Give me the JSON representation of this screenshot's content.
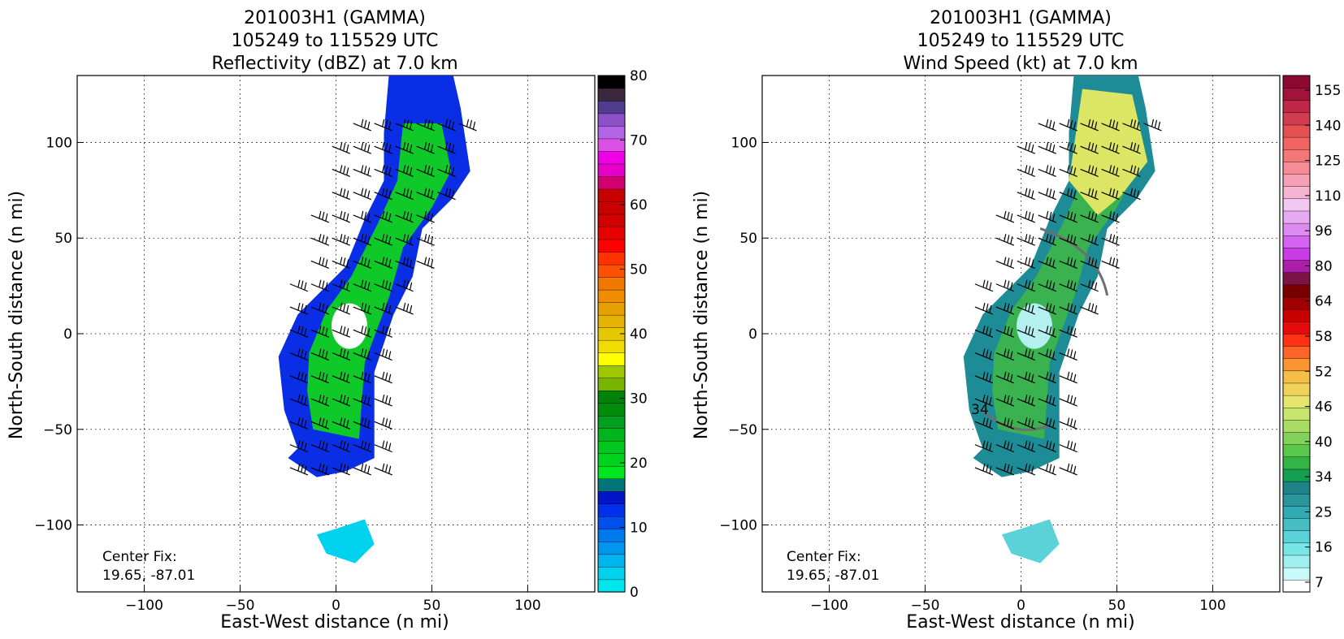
{
  "chart_data": [
    {
      "type": "heatmap",
      "title_lines": [
        "201003H1 (GAMMA)",
        "105249 to 115529 UTC",
        "Reflectivity (dBZ) at 7.0 km"
      ],
      "xlabel": "East-West distance (n mi)",
      "ylabel": "North-South distance (n mi)",
      "xlim": [
        -135,
        135
      ],
      "ylim": [
        -135,
        135
      ],
      "xticks": [
        -100,
        -50,
        0,
        50,
        100
      ],
      "yticks": [
        -100,
        -50,
        0,
        50,
        100
      ],
      "grid": true,
      "annotation_lines": [
        "Center Fix:",
        "19.65, -87.01"
      ],
      "colorbar": {
        "min": 0,
        "max": 80,
        "tick_labels": [
          "0",
          "10",
          "20",
          "30",
          "40",
          "50",
          "60",
          "70",
          "80"
        ],
        "colors": [
          "#00e6ee",
          "#00d2ee",
          "#00b4ee",
          "#0096ee",
          "#0078ee",
          "#0050ee",
          "#0030ee",
          "#0014c8",
          "#00767a",
          "#00e61e",
          "#00d21e",
          "#00c81e",
          "#00b41e",
          "#00a01e",
          "#008c0a",
          "#00820a",
          "#78b400",
          "#a0c800",
          "#ffff00",
          "#f0dc00",
          "#e6c800",
          "#e6b400",
          "#e6a000",
          "#f08c00",
          "#f07800",
          "#ff5000",
          "#ff3200",
          "#ff0000",
          "#e60000",
          "#d20000",
          "#c80000",
          "#c80000",
          "#d2006e",
          "#e600c8",
          "#f000e6",
          "#dc50e6",
          "#b464e6",
          "#8c50c8",
          "#503c8c",
          "#3c283c",
          "#000000"
        ]
      }
    },
    {
      "type": "heatmap",
      "title_lines": [
        "201003H1 (GAMMA)",
        "105249 to 115529 UTC",
        "Wind Speed (kt) at 7.0 km"
      ],
      "xlabel": "East-West distance (n mi)",
      "ylabel": "North-South distance (n mi)",
      "xlim": [
        -135,
        135
      ],
      "ylim": [
        -135,
        135
      ],
      "xticks": [
        -100,
        -50,
        0,
        50,
        100
      ],
      "yticks": [
        -100,
        -50,
        0,
        50,
        100
      ],
      "grid": true,
      "contour_label": "34",
      "annotation_lines": [
        "Center Fix:",
        "19.65, -87.01"
      ],
      "colorbar": {
        "tick_labels": [
          "7",
          "16",
          "25",
          "34",
          "40",
          "46",
          "52",
          "58",
          "64",
          "80",
          "96",
          "110",
          "125",
          "140",
          "155"
        ],
        "colors": [
          "#ffffff",
          "#c8fafa",
          "#a0f0f0",
          "#78e6e6",
          "#5ad2d7",
          "#46bec3",
          "#32aab4",
          "#28969b",
          "#1e8287",
          "#14a050",
          "#32b446",
          "#5ac84b",
          "#82d25a",
          "#aadc64",
          "#c8e66e",
          "#e6e66e",
          "#f0d25a",
          "#f5be46",
          "#fa9632",
          "#ff6428",
          "#ff3214",
          "#e60a0a",
          "#c80000",
          "#a00000",
          "#780000",
          "#7d1446",
          "#aa1eaa",
          "#c83ce6",
          "#d264f0",
          "#dc8cf0",
          "#e6aaf0",
          "#f0c8f0",
          "#f5b4d2",
          "#f5a0b4",
          "#f58c96",
          "#f57878",
          "#f06464",
          "#e65050",
          "#d23c50",
          "#be2846",
          "#a0143c",
          "#8c0a32"
        ]
      }
    }
  ]
}
